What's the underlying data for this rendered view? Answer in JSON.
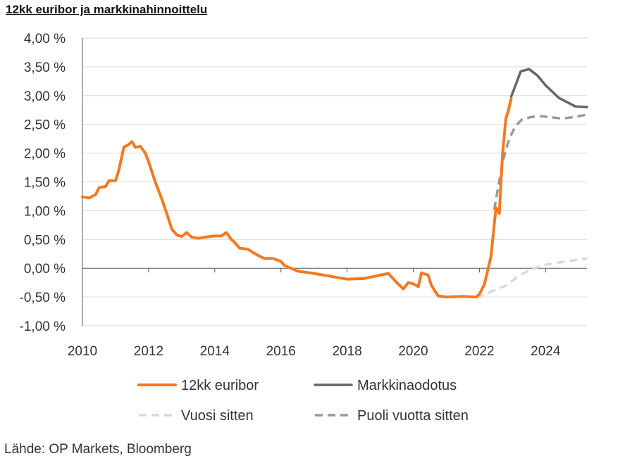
{
  "chart_data": {
    "type": "line",
    "title": "12kk euribor ja markkinahinnoittelu",
    "source": "Lähde: OP Markets, Bloomberg",
    "xlabel": "",
    "ylabel": "",
    "xlim": [
      2010,
      2025.25
    ],
    "ylim": [
      -1.0,
      4.0
    ],
    "x_ticks": [
      2010,
      2012,
      2014,
      2016,
      2018,
      2020,
      2022,
      2024
    ],
    "x_tick_labels": [
      "2010",
      "2012",
      "2014",
      "2016",
      "2018",
      "2020",
      "2022",
      "2024"
    ],
    "y_ticks": [
      -1.0,
      -0.5,
      0.0,
      0.5,
      1.0,
      1.5,
      2.0,
      2.5,
      3.0,
      3.5,
      4.0
    ],
    "y_tick_labels": [
      "-1,00 %",
      "-0,50 %",
      "0,00 %",
      "0,50 %",
      "1,00 %",
      "1,50 %",
      "2,00 %",
      "2,50 %",
      "3,00 %",
      "3,50 %",
      "4,00 %"
    ],
    "grid": "horizontal",
    "legend_placement": "bottom",
    "colors": {
      "euribor": "#f47920",
      "market": "#666666",
      "year_ago": "#d9d9d9",
      "half_year_ago": "#999999",
      "grid": "#d9d9d9",
      "axis": "#555555"
    },
    "series": [
      {
        "name": "12kk euribor",
        "key": "euribor",
        "style": "solid",
        "points": [
          [
            2010.0,
            1.24
          ],
          [
            2010.2,
            1.22
          ],
          [
            2010.4,
            1.28
          ],
          [
            2010.5,
            1.4
          ],
          [
            2010.7,
            1.42
          ],
          [
            2010.8,
            1.52
          ],
          [
            2011.0,
            1.52
          ],
          [
            2011.1,
            1.7
          ],
          [
            2011.25,
            2.1
          ],
          [
            2011.4,
            2.15
          ],
          [
            2011.5,
            2.2
          ],
          [
            2011.6,
            2.1
          ],
          [
            2011.75,
            2.12
          ],
          [
            2011.9,
            2.0
          ],
          [
            2012.0,
            1.85
          ],
          [
            2012.2,
            1.5
          ],
          [
            2012.4,
            1.2
          ],
          [
            2012.55,
            0.95
          ],
          [
            2012.7,
            0.68
          ],
          [
            2012.85,
            0.58
          ],
          [
            2013.0,
            0.55
          ],
          [
            2013.15,
            0.62
          ],
          [
            2013.3,
            0.54
          ],
          [
            2013.5,
            0.52
          ],
          [
            2013.7,
            0.54
          ],
          [
            2014.0,
            0.56
          ],
          [
            2014.2,
            0.56
          ],
          [
            2014.35,
            0.62
          ],
          [
            2014.5,
            0.5
          ],
          [
            2014.6,
            0.45
          ],
          [
            2014.75,
            0.35
          ],
          [
            2015.0,
            0.33
          ],
          [
            2015.25,
            0.24
          ],
          [
            2015.5,
            0.17
          ],
          [
            2015.75,
            0.17
          ],
          [
            2016.0,
            0.12
          ],
          [
            2016.1,
            0.05
          ],
          [
            2016.5,
            -0.05
          ],
          [
            2017.0,
            -0.09
          ],
          [
            2017.5,
            -0.14
          ],
          [
            2018.0,
            -0.19
          ],
          [
            2018.5,
            -0.18
          ],
          [
            2019.0,
            -0.12
          ],
          [
            2019.25,
            -0.09
          ],
          [
            2019.5,
            -0.25
          ],
          [
            2019.7,
            -0.36
          ],
          [
            2019.85,
            -0.25
          ],
          [
            2020.0,
            -0.27
          ],
          [
            2020.15,
            -0.32
          ],
          [
            2020.25,
            -0.08
          ],
          [
            2020.45,
            -0.12
          ],
          [
            2020.55,
            -0.3
          ],
          [
            2020.75,
            -0.48
          ],
          [
            2021.0,
            -0.5
          ],
          [
            2021.5,
            -0.49
          ],
          [
            2021.9,
            -0.5
          ],
          [
            2022.0,
            -0.45
          ],
          [
            2022.15,
            -0.28
          ],
          [
            2022.35,
            0.2
          ],
          [
            2022.5,
            1.05
          ],
          [
            2022.6,
            0.95
          ],
          [
            2022.7,
            2.0
          ],
          [
            2022.8,
            2.6
          ],
          [
            2022.88,
            2.75
          ],
          [
            2022.96,
            2.95
          ]
        ]
      },
      {
        "name": "Markkinaodotus",
        "key": "market",
        "style": "solid",
        "points": [
          [
            2022.96,
            2.98
          ],
          [
            2023.25,
            3.42
          ],
          [
            2023.5,
            3.46
          ],
          [
            2023.75,
            3.35
          ],
          [
            2024.0,
            3.18
          ],
          [
            2024.4,
            2.96
          ],
          [
            2024.9,
            2.81
          ],
          [
            2025.25,
            2.8
          ]
        ]
      },
      {
        "name": "Vuosi sitten",
        "key": "year_ago",
        "style": "dashed",
        "points": [
          [
            2021.9,
            -0.5
          ],
          [
            2022.3,
            -0.42
          ],
          [
            2022.8,
            -0.3
          ],
          [
            2023.2,
            -0.13
          ],
          [
            2023.6,
            -0.01
          ],
          [
            2024.0,
            0.06
          ],
          [
            2024.5,
            0.11
          ],
          [
            2025.25,
            0.17
          ]
        ]
      },
      {
        "name": "Puoli vuotta sitten",
        "key": "half_year_ago",
        "style": "dashed",
        "points": [
          [
            2022.45,
            1.02
          ],
          [
            2022.7,
            1.85
          ],
          [
            2022.9,
            2.25
          ],
          [
            2023.1,
            2.48
          ],
          [
            2023.3,
            2.59
          ],
          [
            2023.6,
            2.63
          ],
          [
            2023.9,
            2.64
          ],
          [
            2024.2,
            2.62
          ],
          [
            2024.5,
            2.6
          ],
          [
            2024.9,
            2.63
          ],
          [
            2025.25,
            2.67
          ]
        ]
      }
    ]
  }
}
